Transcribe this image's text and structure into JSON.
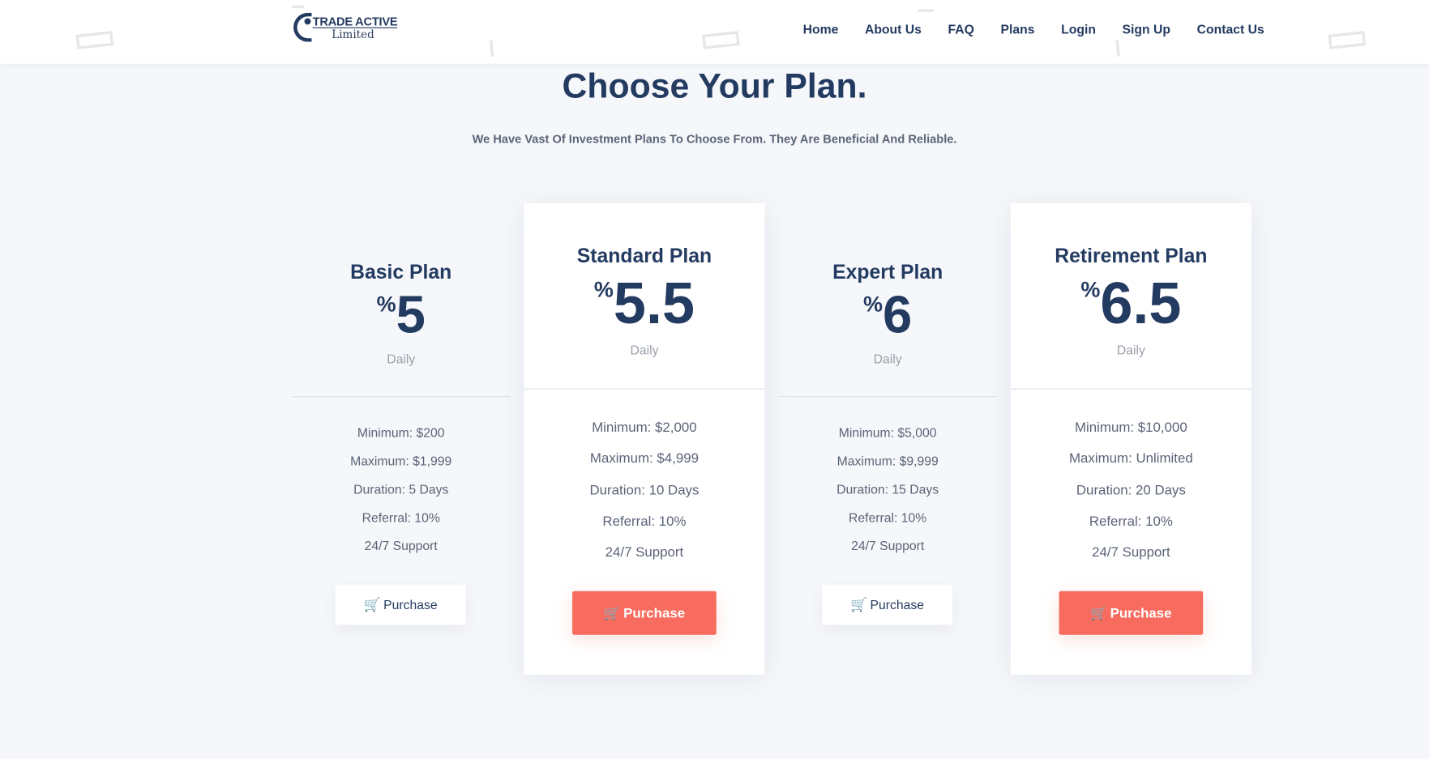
{
  "header": {
    "logo_line1": "TRADE ACTIVE",
    "logo_line2": "Limited",
    "nav": [
      "Home",
      "About Us",
      "FAQ",
      "Plans",
      "Login",
      "Sign Up",
      "Contact Us"
    ]
  },
  "section": {
    "title": "Choose Your Plan.",
    "subtitle": "We Have Vast Of Investment Plans To Choose From. They Are Beneficial And Reliable."
  },
  "plans": [
    {
      "name": "Basic Plan",
      "percent_sign": "%",
      "rate": "5",
      "period": "Daily",
      "features": [
        "Minimum: $200",
        "Maximum: $1,999",
        "Duration: 5 Days",
        "Referral: 10%",
        "24/7 Support"
      ],
      "button": "Purchase",
      "highlighted": false
    },
    {
      "name": "Standard Plan",
      "percent_sign": "%",
      "rate": "5.5",
      "period": "Daily",
      "features": [
        "Minimum: $2,000",
        "Maximum: $4,999",
        "Duration: 10 Days",
        "Referral: 10%",
        "24/7 Support"
      ],
      "button": "Purchase",
      "highlighted": true
    },
    {
      "name": "Expert Plan",
      "percent_sign": "%",
      "rate": "6",
      "period": "Daily",
      "features": [
        "Minimum: $5,000",
        "Maximum: $9,999",
        "Duration: 15 Days",
        "Referral: 10%",
        "24/7 Support"
      ],
      "button": "Purchase",
      "highlighted": false
    },
    {
      "name": "Retirement Plan",
      "percent_sign": "%",
      "rate": "6.5",
      "period": "Daily",
      "features": [
        "Minimum: $10,000",
        "Maximum: Unlimited",
        "Duration: 20 Days",
        "Referral: 10%",
        "24/7 Support"
      ],
      "button": "Purchase",
      "highlighted": true
    }
  ],
  "icons": {
    "cart": "shopping-cart-icon"
  },
  "colors": {
    "navy": "#243b61",
    "accent": "#f76c5e",
    "background": "#f5f7fa"
  }
}
